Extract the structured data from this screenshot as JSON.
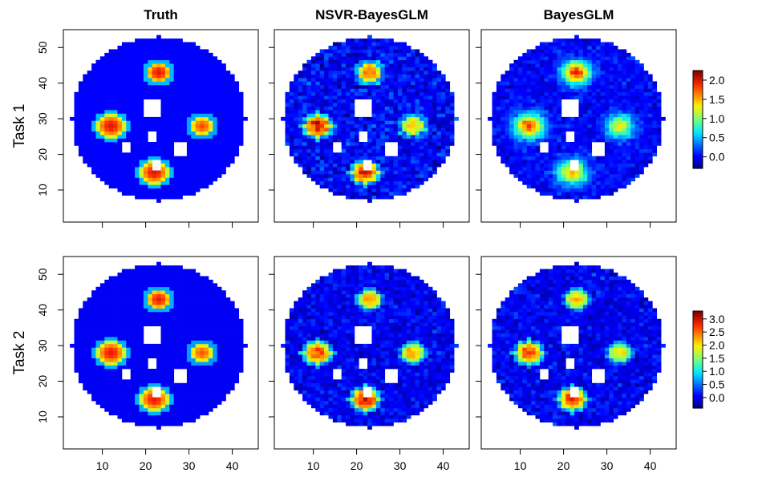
{
  "chart_data": {
    "type": "heatmap",
    "description_columns": [
      "Truth",
      "NSVR-BayesGLM",
      "BayesGLM"
    ],
    "rows": [
      "Task 1",
      "Task 2"
    ],
    "x_axis": {
      "ticks": [
        10,
        20,
        30,
        40
      ],
      "range": [
        1,
        46
      ]
    },
    "y_axis": {
      "ticks": [
        10,
        20,
        30,
        40,
        50
      ],
      "range": [
        1,
        55
      ]
    },
    "brain_mask": {
      "center": [
        23,
        30
      ],
      "radius_x": 20,
      "radius_y": 23
    },
    "holes": [
      {
        "x": [
          20,
          23
        ],
        "y": [
          31,
          35
        ]
      },
      {
        "x": [
          21,
          22
        ],
        "y": [
          24,
          26
        ]
      },
      {
        "x": [
          15,
          16
        ],
        "y": [
          21,
          23
        ]
      },
      {
        "x": [
          27,
          29
        ],
        "y": [
          20,
          23
        ]
      },
      {
        "x": [
          22,
          23
        ],
        "y": [
          16,
          18
        ]
      }
    ],
    "panels": [
      {
        "row": "Task 1",
        "column": "Truth",
        "noise": 0.0,
        "smooth": false,
        "blobs": [
          {
            "x": 23,
            "y": 43,
            "amp": 2.0,
            "r": 2.8
          },
          {
            "x": 12,
            "y": 28,
            "amp": 2.0,
            "r": 3.3
          },
          {
            "x": 33,
            "y": 28,
            "amp": 1.8,
            "r": 2.8
          },
          {
            "x": 22,
            "y": 15,
            "amp": 2.0,
            "r": 3.3
          }
        ]
      },
      {
        "row": "Task 1",
        "column": "NSVR-BayesGLM",
        "noise": 0.22,
        "smooth": false,
        "blobs": [
          {
            "x": 23,
            "y": 43,
            "amp": 1.7,
            "r": 2.8
          },
          {
            "x": 11,
            "y": 28,
            "amp": 2.0,
            "r": 3.0
          },
          {
            "x": 33,
            "y": 28,
            "amp": 1.5,
            "r": 2.8
          },
          {
            "x": 22,
            "y": 15,
            "amp": 1.9,
            "r": 3.0
          }
        ]
      },
      {
        "row": "Task 1",
        "column": "BayesGLM",
        "noise": 0.15,
        "smooth": true,
        "blobs": [
          {
            "x": 23,
            "y": 43,
            "amp": 1.9,
            "r": 3.0
          },
          {
            "x": 12,
            "y": 28,
            "amp": 1.8,
            "r": 3.2
          },
          {
            "x": 33,
            "y": 28,
            "amp": 1.3,
            "r": 3.0
          },
          {
            "x": 22,
            "y": 15,
            "amp": 1.5,
            "r": 3.2
          }
        ]
      },
      {
        "row": "Task 2",
        "column": "Truth",
        "noise": 0.0,
        "smooth": false,
        "blobs": [
          {
            "x": 23,
            "y": 43,
            "amp": 2.9,
            "r": 2.8
          },
          {
            "x": 12,
            "y": 28,
            "amp": 2.9,
            "r": 3.3
          },
          {
            "x": 33,
            "y": 28,
            "amp": 2.6,
            "r": 2.8
          },
          {
            "x": 22,
            "y": 15,
            "amp": 2.9,
            "r": 3.3
          }
        ]
      },
      {
        "row": "Task 2",
        "column": "NSVR-BayesGLM",
        "noise": 0.25,
        "smooth": false,
        "blobs": [
          {
            "x": 23,
            "y": 43,
            "amp": 2.4,
            "r": 2.6
          },
          {
            "x": 11,
            "y": 28,
            "amp": 2.7,
            "r": 3.0
          },
          {
            "x": 33,
            "y": 28,
            "amp": 2.3,
            "r": 2.6
          },
          {
            "x": 22,
            "y": 15,
            "amp": 3.0,
            "r": 3.0
          }
        ]
      },
      {
        "row": "Task 2",
        "column": "BayesGLM",
        "noise": 0.25,
        "smooth": false,
        "blobs": [
          {
            "x": 23,
            "y": 43,
            "amp": 2.2,
            "r": 2.6
          },
          {
            "x": 12,
            "y": 28,
            "amp": 2.7,
            "r": 3.0
          },
          {
            "x": 33,
            "y": 28,
            "amp": 2.0,
            "r": 2.6
          },
          {
            "x": 22,
            "y": 15,
            "amp": 2.8,
            "r": 3.0
          }
        ]
      }
    ],
    "colorbars": [
      {
        "row": "Task 1",
        "range": [
          -0.3,
          2.25
        ],
        "ticks": [
          "0.0",
          "0.5",
          "1.0",
          "1.5",
          "2.0"
        ]
      },
      {
        "row": "Task 2",
        "range": [
          -0.4,
          3.3
        ],
        "ticks": [
          "0.0",
          "0.5",
          "1.0",
          "1.5",
          "2.0",
          "2.5",
          "3.0"
        ]
      }
    ],
    "colormap": "rainbow/jet (dark blue to dark red)"
  }
}
